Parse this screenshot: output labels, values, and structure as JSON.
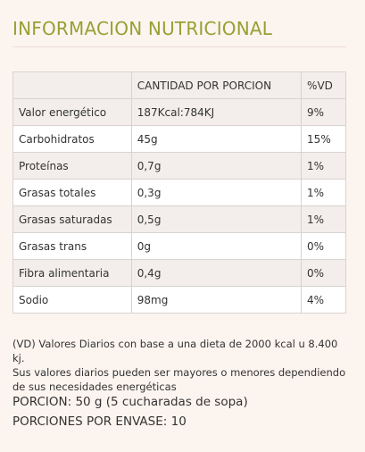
{
  "title": "INFORMACION NUTRICIONAL",
  "table": {
    "headers": [
      "",
      "CANTIDAD POR PORCION",
      "%VD"
    ],
    "rows": [
      [
        "Valor energético",
        "187Kcal:784KJ",
        "9%"
      ],
      [
        "Carbohidratos",
        "45g",
        "15%"
      ],
      [
        "Proteínas",
        "0,7g",
        "1%"
      ],
      [
        "Grasas totales",
        "0,3g",
        "1%"
      ],
      [
        "Grasas saturadas",
        "0,5g",
        "1%"
      ],
      [
        "Grasas trans",
        "0g",
        "0%"
      ],
      [
        "Fibra alimentaria",
        "0,4g",
        "0%"
      ],
      [
        "Sodio",
        "98mg",
        "4%"
      ]
    ]
  },
  "note": {
    "line1": "(VD) Valores Diarios con base a una dieta de 2000 kcal u 8.400 kj.",
    "line2": "Sus valores diarios pueden ser mayores o menores dependiendo",
    "line3": "de sus necesidades energéticas"
  },
  "serving": {
    "portion": "PORCION: 50 g (5 cucharadas de sopa)",
    "per_package": "PORCIONES POR ENVASE: 10"
  },
  "colors": {
    "title": "#97a033",
    "background": "#fcf4ef",
    "row_alt": "#f3eeeb"
  }
}
